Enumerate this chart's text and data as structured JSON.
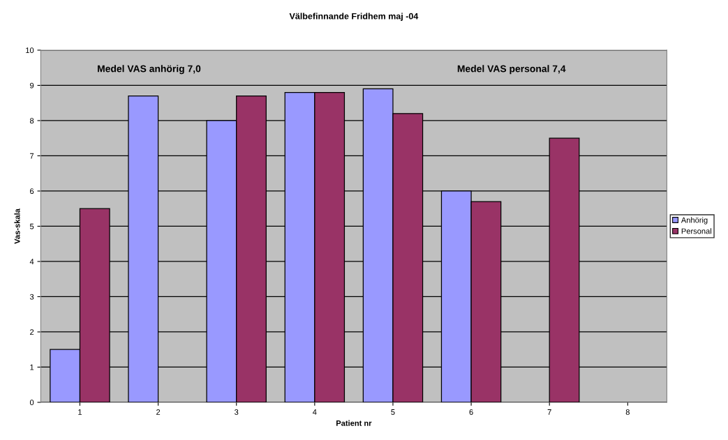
{
  "chart_data": {
    "type": "bar",
    "title": "Välbefinnande Fridhem maj -04",
    "xlabel": "Patient nr",
    "ylabel": "Vas-skala",
    "categories": [
      "1",
      "2",
      "3",
      "4",
      "5",
      "6",
      "7",
      "8"
    ],
    "series": [
      {
        "name": "Anhörig",
        "color": "#9999ff",
        "values": [
          1.5,
          8.7,
          8.0,
          8.8,
          8.9,
          6.0,
          null,
          null
        ]
      },
      {
        "name": "Personal",
        "color": "#993366",
        "values": [
          5.5,
          null,
          8.7,
          8.8,
          8.2,
          5.7,
          7.5,
          null
        ]
      }
    ],
    "annotations": [
      "Medel VAS anhörig 7,0",
      "Medel VAS personal 7,4"
    ],
    "ylim": [
      0,
      10
    ],
    "yticks": [
      0,
      1,
      2,
      3,
      4,
      5,
      6,
      7,
      8,
      9,
      10
    ],
    "grid": "y",
    "legend": "right"
  }
}
